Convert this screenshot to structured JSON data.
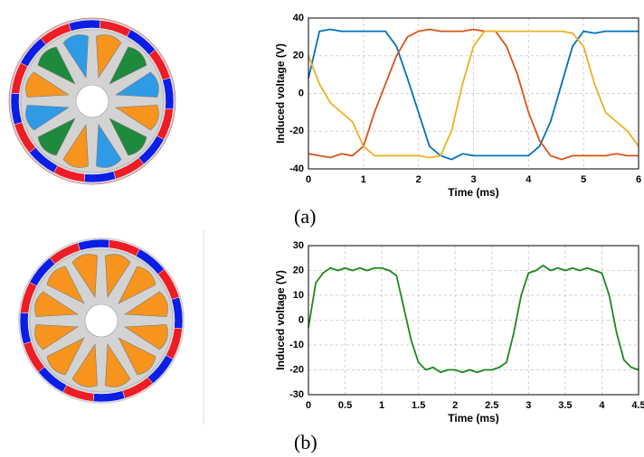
{
  "chart_data": [
    {
      "type": "line",
      "label": "(a)",
      "xlabel": "Time (ms)",
      "ylabel": "Induced voltage (V)",
      "xlim": [
        0,
        6
      ],
      "ylim": [
        -40,
        40
      ],
      "xticks": [
        0,
        1,
        2,
        3,
        4,
        5,
        6
      ],
      "yticks": [
        -40,
        -20,
        0,
        20,
        40
      ],
      "grid": true,
      "x": [
        0,
        0.2,
        0.4,
        0.6,
        0.8,
        1.0,
        1.2,
        1.4,
        1.6,
        1.8,
        2.0,
        2.2,
        2.4,
        2.6,
        2.8,
        3.0,
        3.2,
        3.4,
        3.6,
        3.8,
        4.0,
        4.2,
        4.4,
        4.6,
        4.8,
        5.0,
        5.2,
        5.4,
        5.6,
        5.8,
        6.0
      ],
      "series": [
        {
          "color": "#0072bd",
          "values": [
            8,
            33,
            34,
            33,
            33,
            33,
            33,
            33,
            25,
            8,
            -10,
            -28,
            -33,
            -35,
            -32,
            -33,
            -33,
            -33,
            -33,
            -33,
            -33,
            -28,
            -15,
            5,
            25,
            33,
            32,
            33,
            33,
            33,
            33
          ]
        },
        {
          "color": "#d95319",
          "values": [
            -32,
            -33,
            -34,
            -32,
            -33,
            -28,
            -10,
            5,
            20,
            30,
            33,
            34,
            33,
            33,
            33,
            34,
            33,
            33,
            25,
            10,
            -10,
            -25,
            -33,
            -35,
            -33,
            -33,
            -33,
            -33,
            -32,
            -33,
            -33
          ]
        },
        {
          "color": "#edb120",
          "values": [
            20,
            5,
            -5,
            -10,
            -15,
            -28,
            -33,
            -33,
            -33,
            -33,
            -33,
            -34,
            -33,
            -20,
            5,
            25,
            33,
            33,
            33,
            33,
            33,
            33,
            33,
            33,
            32,
            25,
            5,
            -10,
            -15,
            -20,
            -28
          ]
        }
      ]
    },
    {
      "type": "line",
      "label": "(b)",
      "xlabel": "Time (ms)",
      "ylabel": "Induced voltage (V)",
      "xlim": [
        0,
        4.5
      ],
      "ylim": [
        -30,
        30
      ],
      "xticks": [
        0,
        0.5,
        1,
        1.5,
        2,
        2.5,
        3,
        3.5,
        4,
        4.5
      ],
      "yticks": [
        -30,
        -20,
        -10,
        0,
        10,
        20,
        30
      ],
      "grid": true,
      "x": [
        0,
        0.1,
        0.2,
        0.3,
        0.4,
        0.5,
        0.6,
        0.7,
        0.8,
        0.9,
        1.0,
        1.1,
        1.2,
        1.3,
        1.4,
        1.5,
        1.6,
        1.7,
        1.8,
        1.9,
        2.0,
        2.1,
        2.2,
        2.3,
        2.4,
        2.5,
        2.6,
        2.7,
        2.8,
        2.9,
        3.0,
        3.1,
        3.2,
        3.3,
        3.4,
        3.5,
        3.6,
        3.7,
        3.8,
        3.9,
        4.0,
        4.1,
        4.2,
        4.3,
        4.4,
        4.5
      ],
      "series": [
        {
          "color": "#1a8a1a",
          "values": [
            -3,
            15,
            19,
            21,
            20,
            21,
            20,
            21,
            20,
            21,
            21,
            20,
            18,
            5,
            -8,
            -17,
            -20,
            -19,
            -21,
            -20,
            -20,
            -21,
            -20,
            -21,
            -20,
            -20,
            -19,
            -17,
            -5,
            10,
            19,
            20,
            22,
            20,
            21,
            20,
            21,
            20,
            21,
            20,
            19,
            10,
            -5,
            -16,
            -19,
            -20
          ]
        }
      ]
    }
  ]
}
